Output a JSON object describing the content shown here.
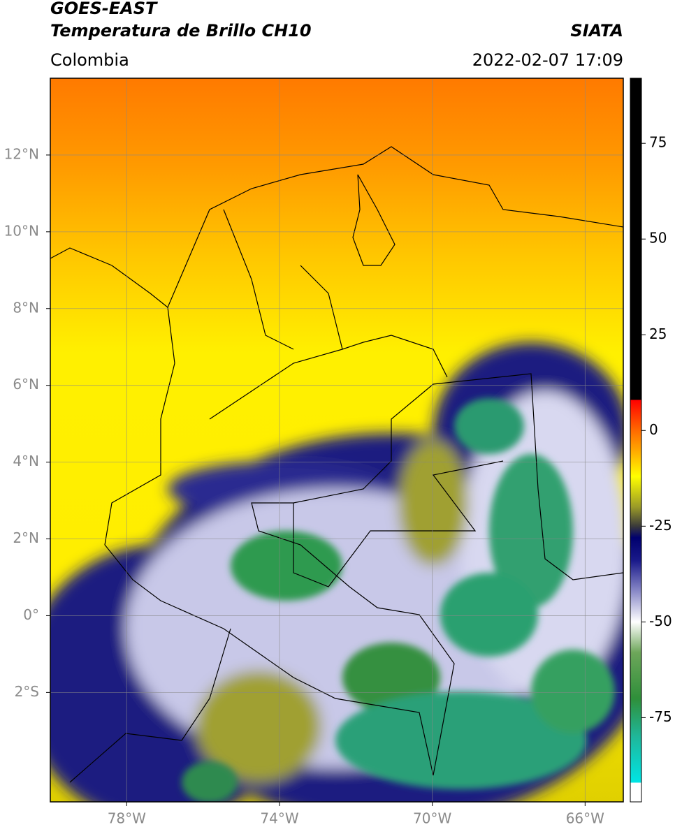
{
  "chart_data": {
    "type": "map",
    "title_lines": [
      "GOES-EAST",
      "Temperatura de Brillo CH10"
    ],
    "source": "SIATA",
    "region": "Colombia",
    "datetime": "2022-02-07 17:09",
    "xlim": [
      -80,
      -65
    ],
    "ylim": [
      -4.85,
      14
    ],
    "xticks": [
      {
        "value": -78,
        "label": "78°W"
      },
      {
        "value": -74,
        "label": "74°W"
      },
      {
        "value": -70,
        "label": "70°W"
      },
      {
        "value": -66,
        "label": "66°W"
      }
    ],
    "yticks": [
      {
        "value": 12,
        "label": "12°N"
      },
      {
        "value": 10,
        "label": "10°N"
      },
      {
        "value": 8,
        "label": "8°N"
      },
      {
        "value": 6,
        "label": "6°N"
      },
      {
        "value": 4,
        "label": "4°N"
      },
      {
        "value": 2,
        "label": "2°N"
      },
      {
        "value": 0,
        "label": "0°"
      },
      {
        "value": -2,
        "label": "2°S"
      }
    ],
    "grid": true,
    "colorbar": {
      "lim": [
        -97,
        92
      ],
      "ticks": [
        75,
        50,
        25,
        0,
        -25,
        -50,
        -75
      ],
      "colorscale": [
        {
          "value": -97,
          "color": "#ffffff"
        },
        {
          "value": -92,
          "color": "#ffffff"
        },
        {
          "value": -92,
          "color": "#00e5e5"
        },
        {
          "value": -80,
          "color": "#1fb79a"
        },
        {
          "value": -70,
          "color": "#2f8f3a"
        },
        {
          "value": -58,
          "color": "#6da65a"
        },
        {
          "value": -50,
          "color": "#ffffff"
        },
        {
          "value": -42,
          "color": "#8a8ac8"
        },
        {
          "value": -34,
          "color": "#1a1a8a"
        },
        {
          "value": -28,
          "color": "#00006e"
        },
        {
          "value": -25,
          "color": "#3a3a3a"
        },
        {
          "value": -20,
          "color": "#9a9a28"
        },
        {
          "value": -12,
          "color": "#ffff00"
        },
        {
          "value": -5,
          "color": "#ffa500"
        },
        {
          "value": 0,
          "color": "#ff6a00"
        },
        {
          "value": 8,
          "color": "#ff0000"
        },
        {
          "value": 8,
          "color": "#000000"
        },
        {
          "value": 92,
          "color": "#000000"
        }
      ]
    }
  }
}
